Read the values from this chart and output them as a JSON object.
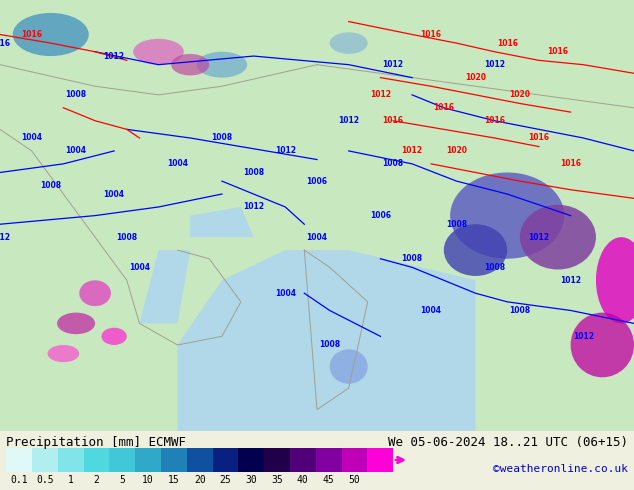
{
  "title_left": "Precipitation [mm] ECMWF",
  "title_right": "We 05-06-2024 18..21 UTC (06+15)",
  "credit": "©weatheronline.co.uk",
  "colorbar_values": [
    0.1,
    0.5,
    1,
    2,
    5,
    10,
    15,
    20,
    25,
    30,
    35,
    40,
    45,
    50
  ],
  "colorbar_colors": [
    "#e0f8f8",
    "#c0f0f0",
    "#a0e8e8",
    "#80e0e8",
    "#60d8e0",
    "#40c8d8",
    "#20b8d0",
    "#0080c0",
    "#004090",
    "#000060",
    "#200050",
    "#600080",
    "#a000a0",
    "#e000c0",
    "#ff00e0"
  ],
  "background_color": "#f0f0e0",
  "map_bg": "#c8e8c0",
  "water_color": "#b0d8e8",
  "label_fontsize": 9,
  "credit_color": "#0000cc",
  "fig_width": 6.34,
  "fig_height": 4.9,
  "dpi": 100
}
